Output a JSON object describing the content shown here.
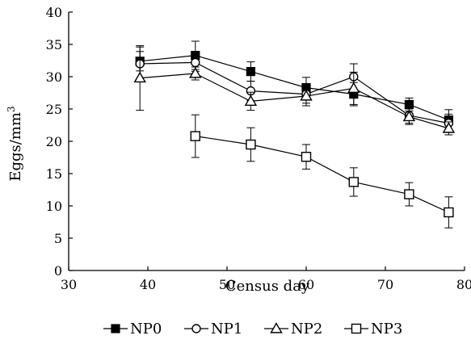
{
  "chart_data": {
    "type": "line",
    "xlabel": "Census day",
    "ylabel": "Eggs/mm",
    "ylabel_superscript": "3",
    "xlim": [
      30,
      80
    ],
    "ylim": [
      0,
      40
    ],
    "xticks": [
      30,
      40,
      50,
      60,
      70,
      80
    ],
    "yticks": [
      0,
      5,
      10,
      15,
      20,
      25,
      30,
      35,
      40
    ],
    "grid": false,
    "legend_position": "bottom",
    "series": [
      {
        "name": "NP0",
        "marker": "filled-square",
        "points": [
          {
            "x": 39,
            "y": 32.4,
            "err": 1.5
          },
          {
            "x": 46,
            "y": 33.3,
            "err": 2.2
          },
          {
            "x": 53,
            "y": 30.8,
            "err": 1.5
          },
          {
            "x": 60,
            "y": 28.3,
            "err": 1.6
          },
          {
            "x": 66,
            "y": 27.3,
            "err": 1.8
          },
          {
            "x": 73,
            "y": 25.7,
            "err": 1.0
          },
          {
            "x": 78,
            "y": 23.3,
            "err": 1.6
          }
        ]
      },
      {
        "name": "NP1",
        "marker": "open-circle",
        "points": [
          {
            "x": 39,
            "y": 32.0,
            "err": 2.6
          },
          {
            "x": 46,
            "y": 32.2,
            "err": 1.4
          },
          {
            "x": 53,
            "y": 27.8,
            "err": 1.5
          },
          {
            "x": 60,
            "y": 27.3,
            "err": 1.4
          },
          {
            "x": 66,
            "y": 30.0,
            "err": 2.0
          },
          {
            "x": 73,
            "y": 24.0,
            "err": 1.2
          },
          {
            "x": 78,
            "y": 22.8,
            "err": 1.4
          }
        ]
      },
      {
        "name": "NP2",
        "marker": "open-triangle",
        "points": [
          {
            "x": 39,
            "y": 29.8,
            "err": 5.0
          },
          {
            "x": 46,
            "y": 30.5,
            "err": 1.0
          },
          {
            "x": 53,
            "y": 26.2,
            "err": 1.4
          },
          {
            "x": 60,
            "y": 27.0,
            "err": 1.5
          },
          {
            "x": 66,
            "y": 28.2,
            "err": 2.5
          },
          {
            "x": 73,
            "y": 23.8,
            "err": 1.2
          },
          {
            "x": 78,
            "y": 22.0,
            "err": 1.0
          }
        ]
      },
      {
        "name": "NP3",
        "marker": "open-square",
        "points": [
          {
            "x": 46,
            "y": 20.8,
            "err": 3.3
          },
          {
            "x": 53,
            "y": 19.5,
            "err": 2.6
          },
          {
            "x": 60,
            "y": 17.6,
            "err": 1.9
          },
          {
            "x": 66,
            "y": 13.7,
            "err": 2.2
          },
          {
            "x": 73,
            "y": 11.8,
            "err": 1.8
          },
          {
            "x": 78,
            "y": 9.0,
            "err": 2.4
          }
        ]
      }
    ]
  }
}
